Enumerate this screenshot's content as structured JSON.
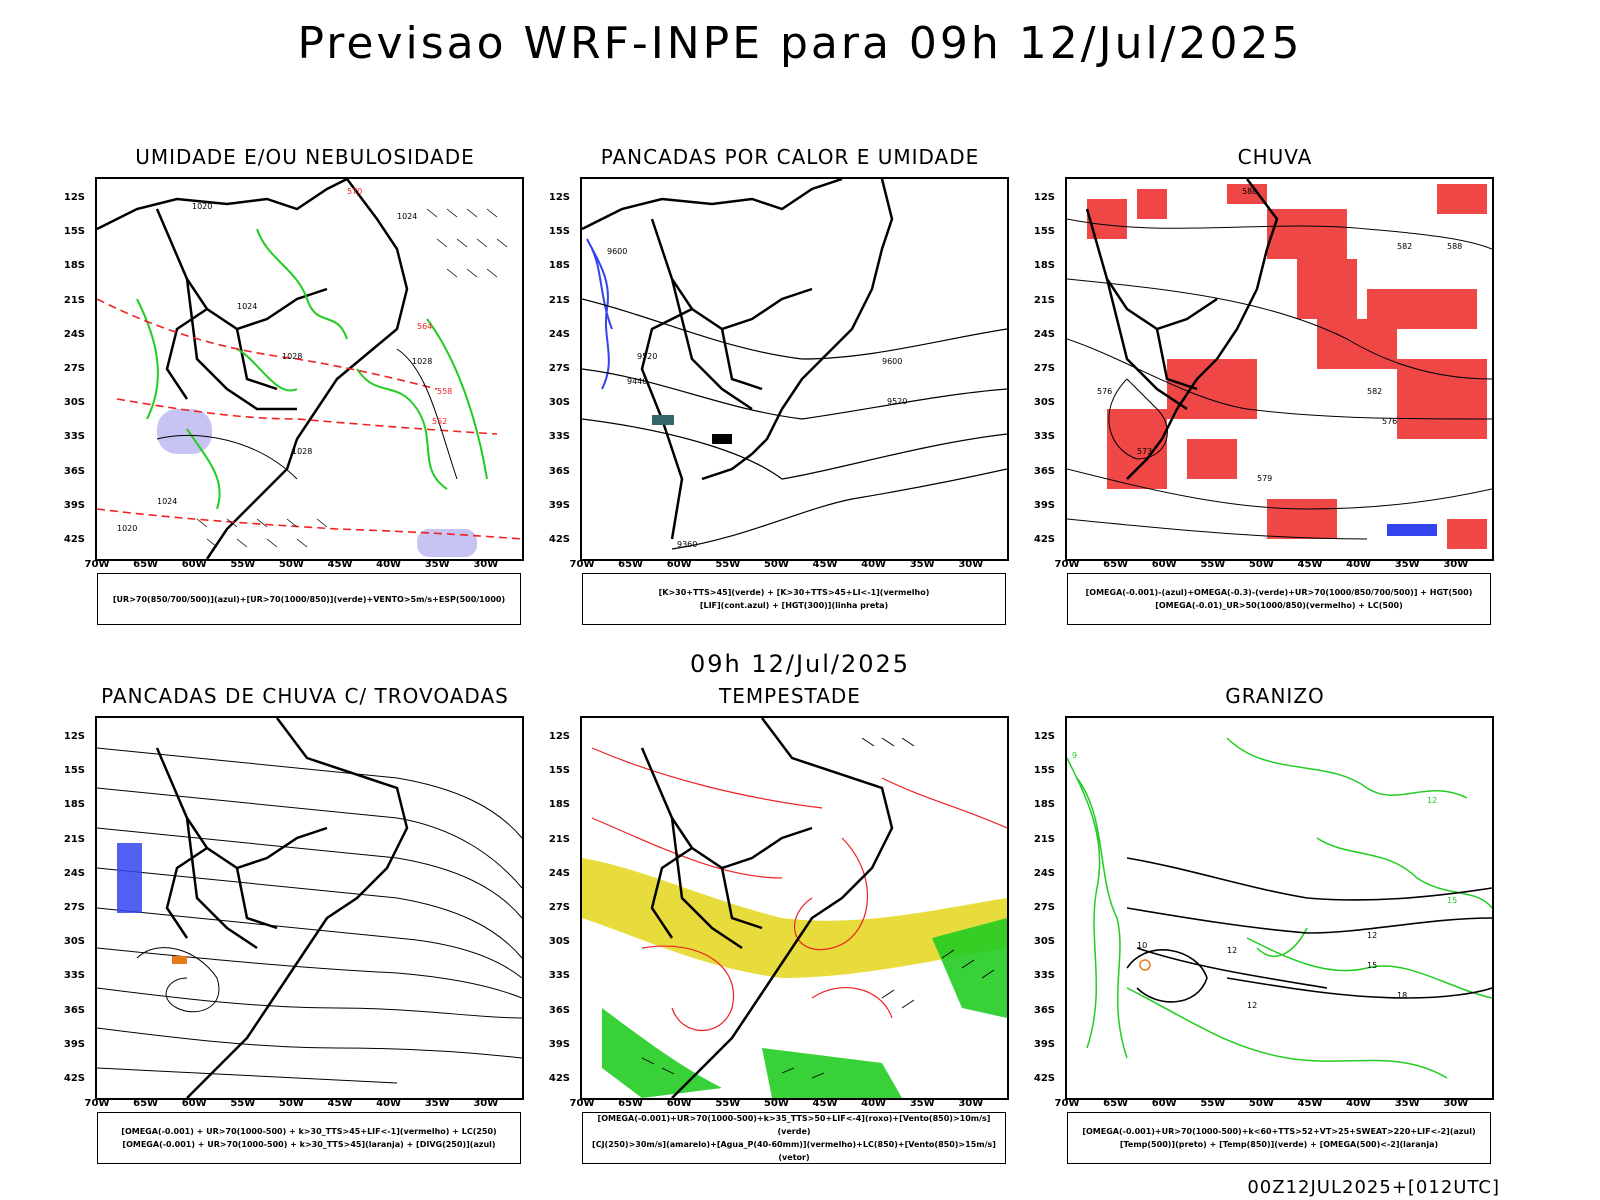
{
  "header": {
    "title": "Previsao WRF-INPE  para 09h 12/Jul/2025"
  },
  "mid_title": "09h 12/Jul/2025",
  "footer": "00Z12JUL2025+[012UTC]",
  "axes": {
    "lat_labels": [
      "12S",
      "15S",
      "18S",
      "21S",
      "24S",
      "27S",
      "30S",
      "33S",
      "36S",
      "39S",
      "42S"
    ],
    "lon_labels": [
      "70W",
      "65W",
      "60W",
      "55W",
      "50W",
      "45W",
      "40W",
      "35W",
      "30W"
    ]
  },
  "colors": {
    "red": "#ee2222",
    "green": "#22cc22",
    "blue": "#3344ee",
    "yellow": "#e6d828",
    "black": "#000000",
    "violet": "#b9b5f0",
    "orange": "#e67a1a"
  },
  "panels": [
    {
      "title": "UMIDADE E/OU NEBULOSIDADE",
      "legend": [
        "[UR>70(850/700/500)](azul)+[UR>70(1000/850)](verde)+VENTO>5m/s+ESP(500/1000)"
      ],
      "contour_labels": [
        "1020",
        "1024",
        "1028",
        "1024",
        "1028",
        "570",
        "564",
        "558",
        "552",
        "1028",
        "1024",
        "1020"
      ]
    },
    {
      "title": "PANCADAS POR CALOR E UMIDADE",
      "legend": [
        "[K>30+TTS>45](verde) + [K>30+TTS>45+LI<-1](vermelho)",
        "[LIF](cont.azul) + [HGT(300)](linha preta)"
      ],
      "contour_labels": [
        "9600",
        "9520",
        "9440",
        "9600",
        "9520",
        "9360"
      ]
    },
    {
      "title": "CHUVA",
      "legend": [
        "[OMEGA(-0.001)-(azul)+OMEGA(-0.3)-(verde)+UR>70(1000/850/700/500)] + HGT(500)",
        "[OMEGA(-0.01)_UR>50(1000/850)(vermelho) + LC(500)"
      ],
      "contour_labels": [
        "588",
        "582",
        "576",
        "573",
        "579",
        "576",
        "582",
        "588"
      ]
    },
    {
      "title": "PANCADAS DE CHUVA C/ TROVOADAS",
      "legend": [
        "[OMEGA(-0.001) + UR>70(1000-500) + k>30_TTS>45+LIF<-1](vermelho) + LC(250)",
        "[OMEGA(-0.001) + UR>70(1000-500) + k>30_TTS>45](laranja) + [DIVG(250)](azul)"
      ],
      "contour_labels": []
    },
    {
      "title": "TEMPESTADE",
      "legend": [
        "[OMEGA(-0.001)+UR>70(1000-500)+k>35_TTS>50+LIF<-4](roxo)+[Vento(850)>10m/s](verde)",
        "[CJ(250)>30m/s](amarelo)+[Agua_P(40-60mm)](vermelho)+LC(850)+[Vento(850)>15m/s](vetor)"
      ],
      "contour_labels": []
    },
    {
      "title": "GRANIZO",
      "legend": [
        "[OMEGA(-0.001)+UR>70(1000-500)+k<60+TTS>52+VT>25+SWEAT>220+LIF<-2](azul)",
        "[Temp(500)](preto) + [Temp(850)](verde) + [OMEGA(500)<-2](laranja)"
      ],
      "contour_labels": [
        "9",
        "12",
        "15",
        "10",
        "12",
        "15",
        "18",
        "12",
        "12"
      ]
    }
  ]
}
